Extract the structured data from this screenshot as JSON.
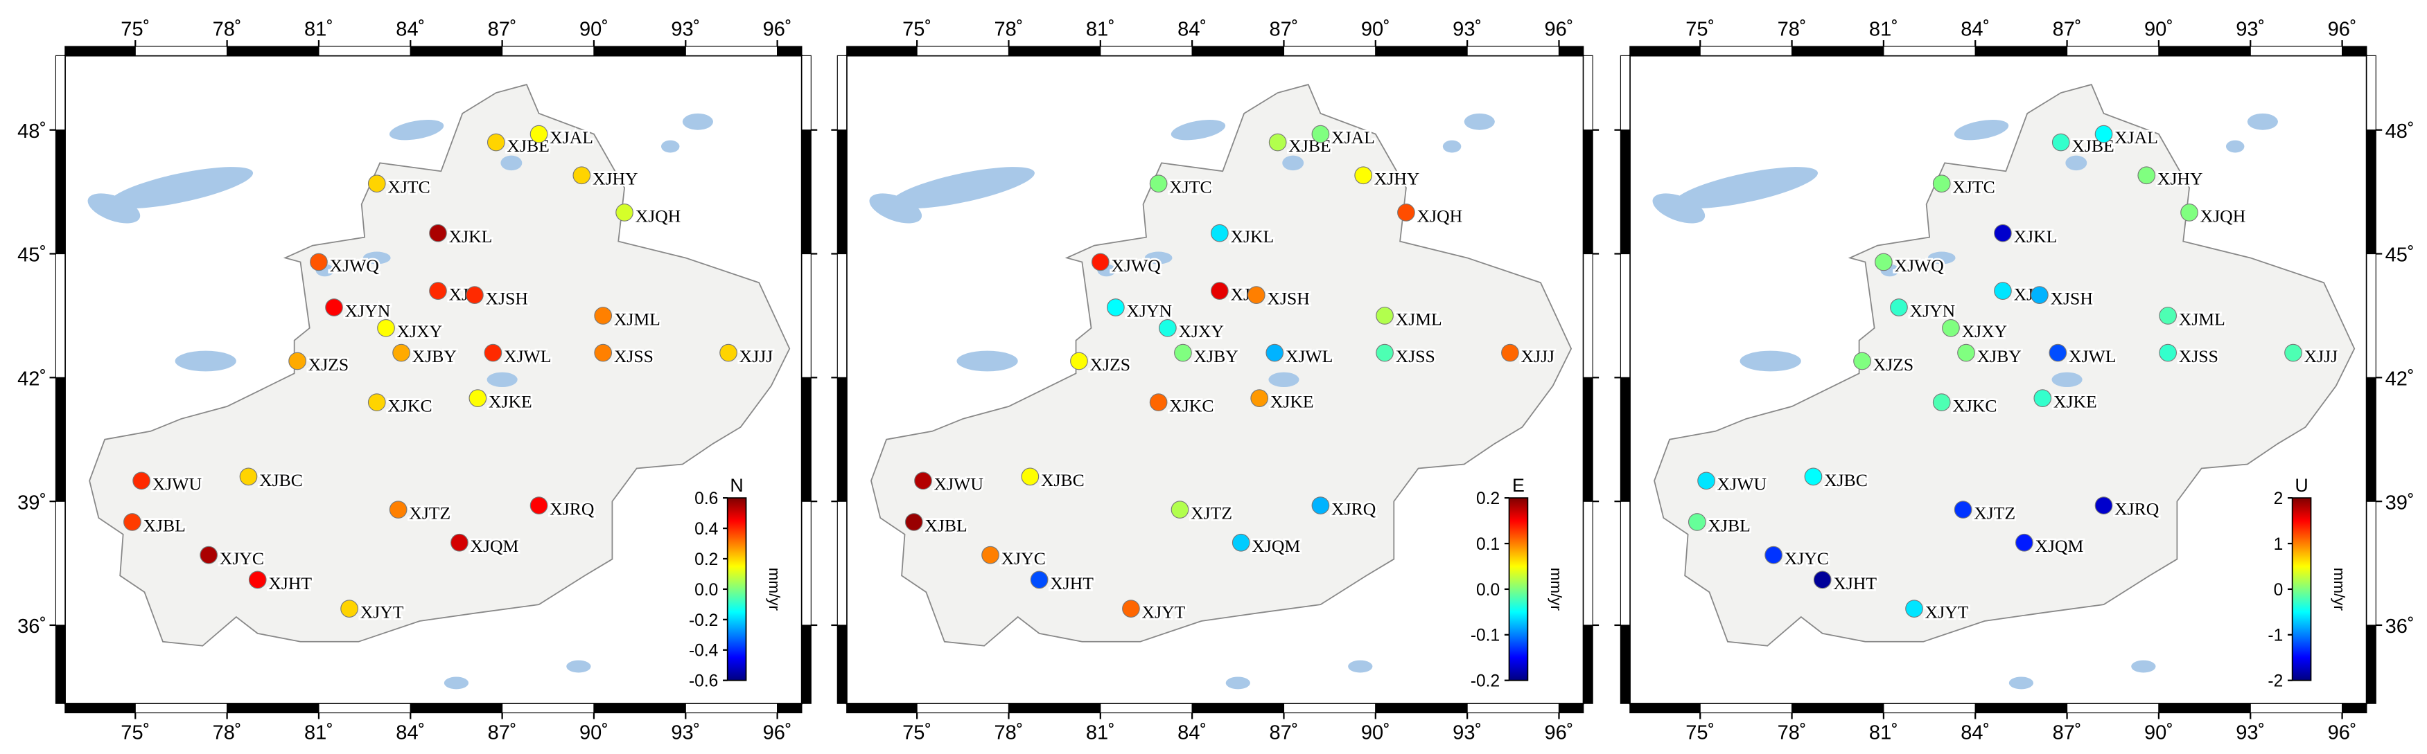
{
  "map": {
    "xlim": [
      72.7,
      96.8
    ],
    "ylim": [
      34.1,
      49.8
    ],
    "colormap": "jet",
    "lon_ticks": [
      {
        "value": 75,
        "label": "75˚"
      },
      {
        "value": 78,
        "label": "78˚"
      },
      {
        "value": 81,
        "label": "81˚"
      },
      {
        "value": 84,
        "label": "84˚"
      },
      {
        "value": 87,
        "label": "87˚"
      },
      {
        "value": 90,
        "label": "90˚"
      },
      {
        "value": 93,
        "label": "93˚"
      },
      {
        "value": 96,
        "label": "96˚"
      }
    ],
    "lat_ticks": [
      {
        "value": 36,
        "label": "36˚"
      },
      {
        "value": 39,
        "label": "39˚"
      },
      {
        "value": 42,
        "label": "42˚"
      },
      {
        "value": 45,
        "label": "45˚"
      },
      {
        "value": 48,
        "label": "48˚"
      }
    ],
    "stations": [
      {
        "name": "XJBE",
        "lon": 86.8,
        "lat": 47.7
      },
      {
        "name": "XJAL",
        "lon": 88.2,
        "lat": 47.9
      },
      {
        "name": "XJHY",
        "lon": 89.6,
        "lat": 46.9
      },
      {
        "name": "XJQH",
        "lon": 91.0,
        "lat": 46.0
      },
      {
        "name": "XJTC",
        "lon": 82.9,
        "lat": 46.7
      },
      {
        "name": "XJKL",
        "lon": 84.9,
        "lat": 45.5
      },
      {
        "name": "XJWQ",
        "lon": 81.0,
        "lat": 44.8
      },
      {
        "name": "XJL",
        "lon": 84.9,
        "lat": 44.1
      },
      {
        "name": "XJSH",
        "lon": 86.1,
        "lat": 44.0
      },
      {
        "name": "XJYN",
        "lon": 81.5,
        "lat": 43.7
      },
      {
        "name": "XJML",
        "lon": 90.3,
        "lat": 43.5
      },
      {
        "name": "XJXY",
        "lon": 83.2,
        "lat": 43.2
      },
      {
        "name": "XJBY",
        "lon": 83.7,
        "lat": 42.6
      },
      {
        "name": "XJWL",
        "lon": 86.7,
        "lat": 42.6
      },
      {
        "name": "XJSS",
        "lon": 90.3,
        "lat": 42.6
      },
      {
        "name": "XJJJ",
        "lon": 94.4,
        "lat": 42.6
      },
      {
        "name": "XJZS",
        "lon": 80.3,
        "lat": 42.4
      },
      {
        "name": "XJKC",
        "lon": 82.9,
        "lat": 41.4
      },
      {
        "name": "XJKE",
        "lon": 86.2,
        "lat": 41.5
      },
      {
        "name": "XJWU",
        "lon": 75.2,
        "lat": 39.5
      },
      {
        "name": "XJBC",
        "lon": 78.7,
        "lat": 39.6
      },
      {
        "name": "XJTZ",
        "lon": 83.6,
        "lat": 38.8
      },
      {
        "name": "XJRQ",
        "lon": 88.2,
        "lat": 38.9
      },
      {
        "name": "XJBL",
        "lon": 74.9,
        "lat": 38.5
      },
      {
        "name": "XJYC",
        "lon": 77.4,
        "lat": 37.7
      },
      {
        "name": "XJQM",
        "lon": 85.6,
        "lat": 38.0
      },
      {
        "name": "XJHT",
        "lon": 79.0,
        "lat": 37.1
      },
      {
        "name": "XJYT",
        "lon": 82.0,
        "lat": 36.4
      }
    ]
  },
  "panels": [
    {
      "component": "N",
      "unit": "mm/yr",
      "clim": [
        -0.6,
        0.6
      ],
      "lat_labels": "left",
      "cticks": [
        0.6,
        0.4,
        0.2,
        {
          "value": 0,
          "label": "0.0"
        },
        -0.2,
        -0.4,
        -0.6
      ],
      "values": [
        0.2,
        0.15,
        0.2,
        0.1,
        0.2,
        0.55,
        0.35,
        0.4,
        0.4,
        0.45,
        0.3,
        0.15,
        0.25,
        0.4,
        0.3,
        0.2,
        0.25,
        0.2,
        0.15,
        0.4,
        0.2,
        0.3,
        0.45,
        0.38,
        0.55,
        0.5,
        0.45,
        0.2
      ]
    },
    {
      "component": "E",
      "unit": "mm/yr",
      "clim": [
        -0.2,
        0.2
      ],
      "lat_labels": "none",
      "cticks": [
        0.2,
        0.1,
        {
          "value": 0,
          "label": "0.0"
        },
        -0.1,
        -0.2
      ],
      "values": [
        0.02,
        0.0,
        0.05,
        0.12,
        0.0,
        -0.06,
        0.14,
        0.16,
        0.1,
        -0.05,
        0.02,
        -0.04,
        0.0,
        -0.08,
        -0.02,
        0.11,
        0.05,
        0.11,
        0.09,
        0.18,
        0.05,
        0.02,
        -0.08,
        0.19,
        0.1,
        -0.07,
        -0.12,
        0.11
      ]
    },
    {
      "component": "U",
      "unit": "mm/yr",
      "clim": [
        -2,
        2
      ],
      "lat_labels": "right",
      "cticks": [
        2,
        1,
        0,
        -1,
        -2
      ],
      "values": [
        -0.3,
        -0.5,
        0,
        0,
        0,
        -1.7,
        0,
        -0.6,
        -0.8,
        -0.3,
        -0.2,
        0,
        0,
        -1.2,
        -0.3,
        -0.2,
        0,
        -0.2,
        -0.3,
        -0.6,
        -0.5,
        -1.3,
        -1.7,
        -0.1,
        -1.3,
        -1.4,
        -1.9,
        -0.6
      ]
    }
  ]
}
